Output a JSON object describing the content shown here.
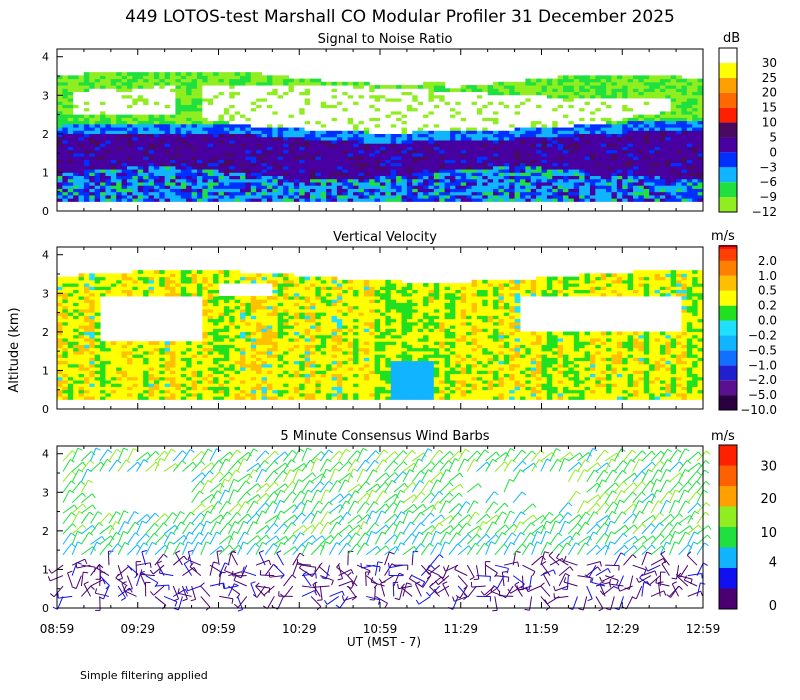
{
  "chart_data": {
    "title": "449 LOTOS-test Marshall CO Modular Profiler 31 December 2025",
    "ylabel": "Altitude (km)",
    "xlabel": "UT  (MST - 7)",
    "footer": "Simple filtering applied",
    "x_ticks": [
      "08:59",
      "09:29",
      "09:59",
      "10:29",
      "10:59",
      "11:29",
      "11:59",
      "12:29",
      "12:59"
    ],
    "panels": [
      {
        "type": "heatmap",
        "title": "Signal to Noise Ratio",
        "unit": "dB",
        "ylim": [
          0,
          4.2
        ],
        "y_ticks": [
          "0",
          "1",
          "2",
          "3",
          "4"
        ],
        "colorbar": [
          {
            "label": "−12",
            "color": "#90ee20"
          },
          {
            "label": "−9",
            "color": "#20e040"
          },
          {
            "label": "−6",
            "color": "#10b4ff"
          },
          {
            "label": "−3",
            "color": "#0030ff"
          },
          {
            "label": "0",
            "color": "#4800a0"
          },
          {
            "label": "5",
            "color": "#4a0a60"
          },
          {
            "label": "10",
            "color": "#ff2000"
          },
          {
            "label": "15",
            "color": "#ff6a00"
          },
          {
            "label": "20",
            "color": "#ffa000"
          },
          {
            "label": "25",
            "color": "#ffff00"
          },
          {
            "label": "30",
            "color": "#ffffff"
          }
        ]
      },
      {
        "type": "heatmap",
        "title": "Vertical Velocity",
        "unit": "m/s",
        "ylim": [
          0,
          4.2
        ],
        "y_ticks": [
          "0",
          "1",
          "2",
          "3",
          "4"
        ],
        "colorbar": [
          {
            "label": "−10.0",
            "color": "#2a0040"
          },
          {
            "label": "−5.0",
            "color": "#5a1090"
          },
          {
            "label": "−2.0",
            "color": "#2020d0"
          },
          {
            "label": "−1.0",
            "color": "#1070ff"
          },
          {
            "label": "−0.5",
            "color": "#10b4ff"
          },
          {
            "label": "−0.2",
            "color": "#20e0ff"
          },
          {
            "label": "0.0",
            "color": "#20e020"
          },
          {
            "label": "0.2",
            "color": "#ffff00"
          },
          {
            "label": "0.5",
            "color": "#ffc000"
          },
          {
            "label": "1.0",
            "color": "#ff8000"
          },
          {
            "label": "2.0",
            "color": "#ff4000"
          }
        ],
        "top_color": "#ff1010"
      },
      {
        "type": "scatter",
        "title": "5 Minute Consensus Wind Barbs",
        "unit": "m/s",
        "ylim": [
          0,
          4.2
        ],
        "y_ticks": [
          "0",
          "1",
          "2",
          "3",
          "4"
        ],
        "colorbar": [
          {
            "label": "0",
            "color": "#4a0070"
          },
          {
            "label": "4",
            "color": "#1010f0"
          },
          {
            "label": "10",
            "color": "#10b4ff"
          },
          {
            "label": "20",
            "color": "#20e040"
          },
          {
            "label": "30",
            "color": "#90ee20"
          }
        ],
        "colorbar_segments": [
          "#4a0070",
          "#1010f0",
          "#10b4ff",
          "#20e040",
          "#90ee20",
          "#ffa000",
          "#ff6000",
          "#ff2000"
        ]
      }
    ]
  }
}
